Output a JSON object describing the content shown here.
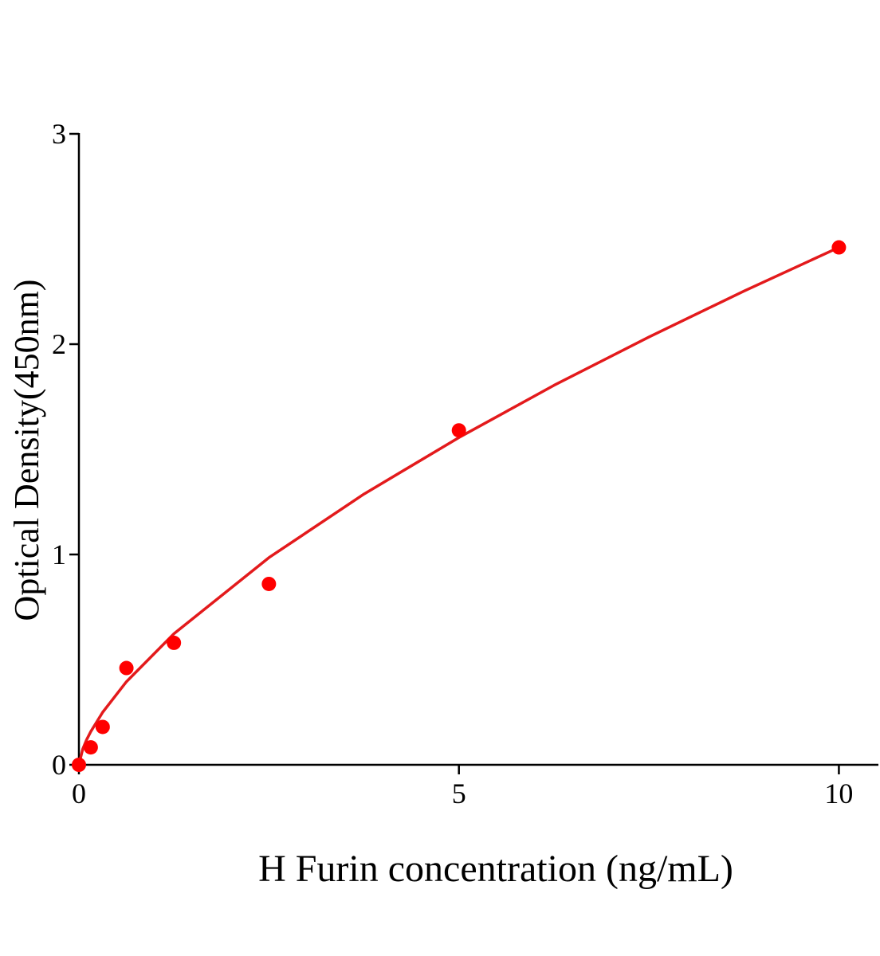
{
  "chart_data": {
    "type": "scatter",
    "x_label": "H Furin concentration (ng/mL)",
    "y_label": "Optical Density(450nm)",
    "x": [
      0,
      0.156,
      0.313,
      0.625,
      1.25,
      2.5,
      5,
      10
    ],
    "values": [
      0,
      0.083,
      0.18,
      0.46,
      0.58,
      0.86,
      1.59,
      2.46
    ],
    "color": "#ff0000",
    "fit": {
      "color": "#e31a1c",
      "x": [
        0,
        0.05,
        0.1,
        0.156,
        0.313,
        0.625,
        1.25,
        2.5,
        3.75,
        5,
        6.25,
        7.5,
        8.75,
        10
      ],
      "values": [
        0,
        0.0745,
        0.118,
        0.158,
        0.25,
        0.395,
        0.623,
        0.985,
        1.287,
        1.556,
        1.804,
        2.034,
        2.252,
        2.46
      ]
    },
    "xlim": [
      0,
      10.52
    ],
    "ylim": [
      0,
      3
    ],
    "xticks": [
      0,
      5,
      10
    ],
    "yticks": [
      0,
      1,
      2,
      3
    ]
  }
}
